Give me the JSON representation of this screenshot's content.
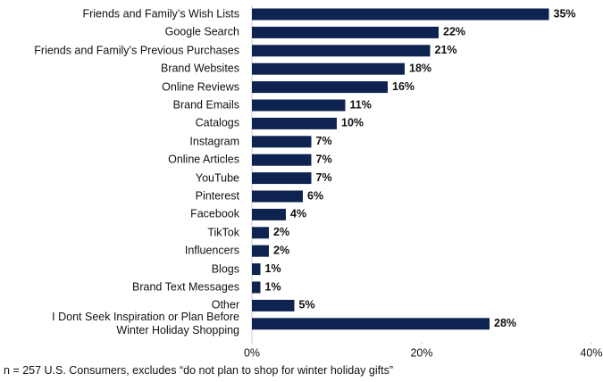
{
  "chart_data": {
    "type": "bar",
    "orientation": "horizontal",
    "categories": [
      "Friends and Family’s Wish Lists",
      "Google Search",
      "Friends and Family’s Previous Purchases",
      "Brand Websites",
      "Online Reviews",
      "Brand Emails",
      "Catalogs",
      "Instagram",
      "Online Articles",
      "YouTube",
      "Pinterest",
      "Facebook",
      "TikTok",
      "Influencers",
      "Blogs",
      "Brand Text Messages",
      "Other",
      "I Dont Seek Inspiration or Plan Before\nWinter Holiday Shopping"
    ],
    "values": [
      35,
      22,
      21,
      18,
      16,
      11,
      10,
      7,
      7,
      7,
      6,
      4,
      2,
      2,
      1,
      1,
      5,
      28
    ],
    "value_labels": [
      "35%",
      "22%",
      "21%",
      "18%",
      "16%",
      "11%",
      "10%",
      "7%",
      "7%",
      "7%",
      "6%",
      "4%",
      "2%",
      "2%",
      "1%",
      "1%",
      "5%",
      "28%"
    ],
    "color": "#0f2350",
    "xlim": [
      0,
      40
    ],
    "xticks": [
      {
        "value": 0,
        "label": "0%"
      },
      {
        "value": 20,
        "label": "20%"
      },
      {
        "value": 40,
        "label": "40%"
      }
    ],
    "note": "n = 257 U.S. Consumers, excludes “do not plan to shop for winter holiday gifts”"
  }
}
